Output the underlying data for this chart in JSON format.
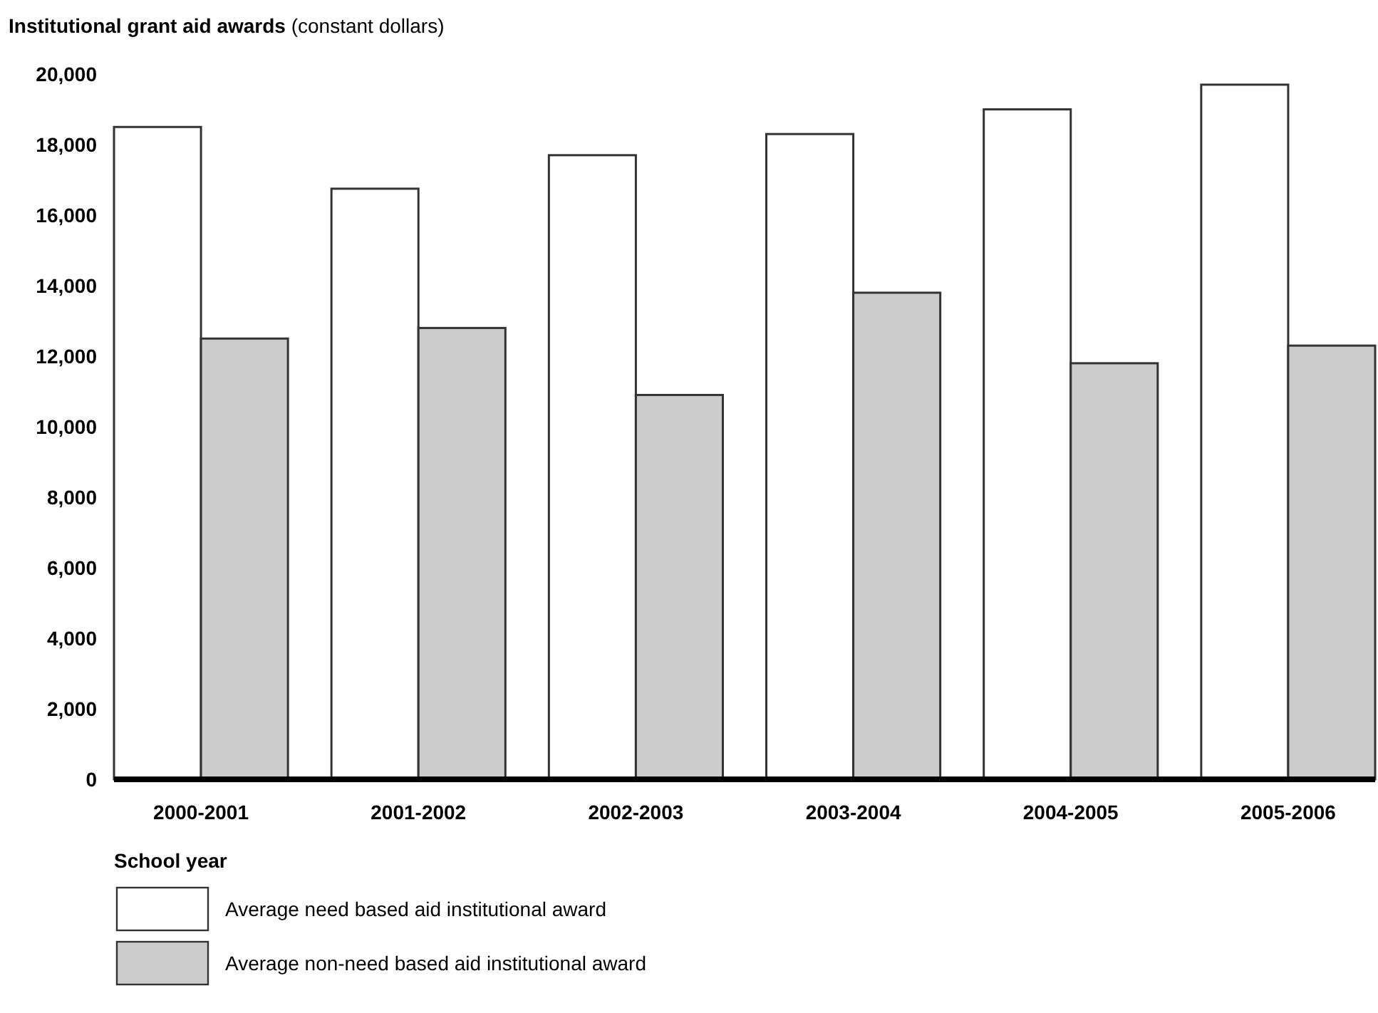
{
  "chart_data": {
    "type": "bar",
    "title": "Institutional grant aid awards",
    "subtitle": "(constant dollars)",
    "xlabel": "School year",
    "categories": [
      "2000-2001",
      "2001-2002",
      "2002-2003",
      "2003-2004",
      "2004-2005",
      "2005-2006"
    ],
    "series": [
      {
        "name": "Average need based aid institutional award",
        "color": "#ffffff",
        "values": [
          18500,
          16750,
          17700,
          18300,
          19000,
          19700
        ]
      },
      {
        "name": "Average non-need based aid institutional award",
        "color": "#cccccc",
        "values": [
          12500,
          12800,
          10900,
          13800,
          11800,
          12300
        ]
      }
    ],
    "ylim": [
      0,
      20000
    ],
    "yticks": [
      {
        "value": 0,
        "label": "0"
      },
      {
        "value": 2000,
        "label": "2,000"
      },
      {
        "value": 4000,
        "label": "4,000"
      },
      {
        "value": 6000,
        "label": "6,000"
      },
      {
        "value": 8000,
        "label": "8,000"
      },
      {
        "value": 10000,
        "label": "10,000"
      },
      {
        "value": 12000,
        "label": "12,000"
      },
      {
        "value": 14000,
        "label": "14,000"
      },
      {
        "value": 16000,
        "label": "16,000"
      },
      {
        "value": 18000,
        "label": "18,000"
      },
      {
        "value": 20000,
        "label": "20,000"
      }
    ],
    "grid": false,
    "legend": "bottom left"
  }
}
